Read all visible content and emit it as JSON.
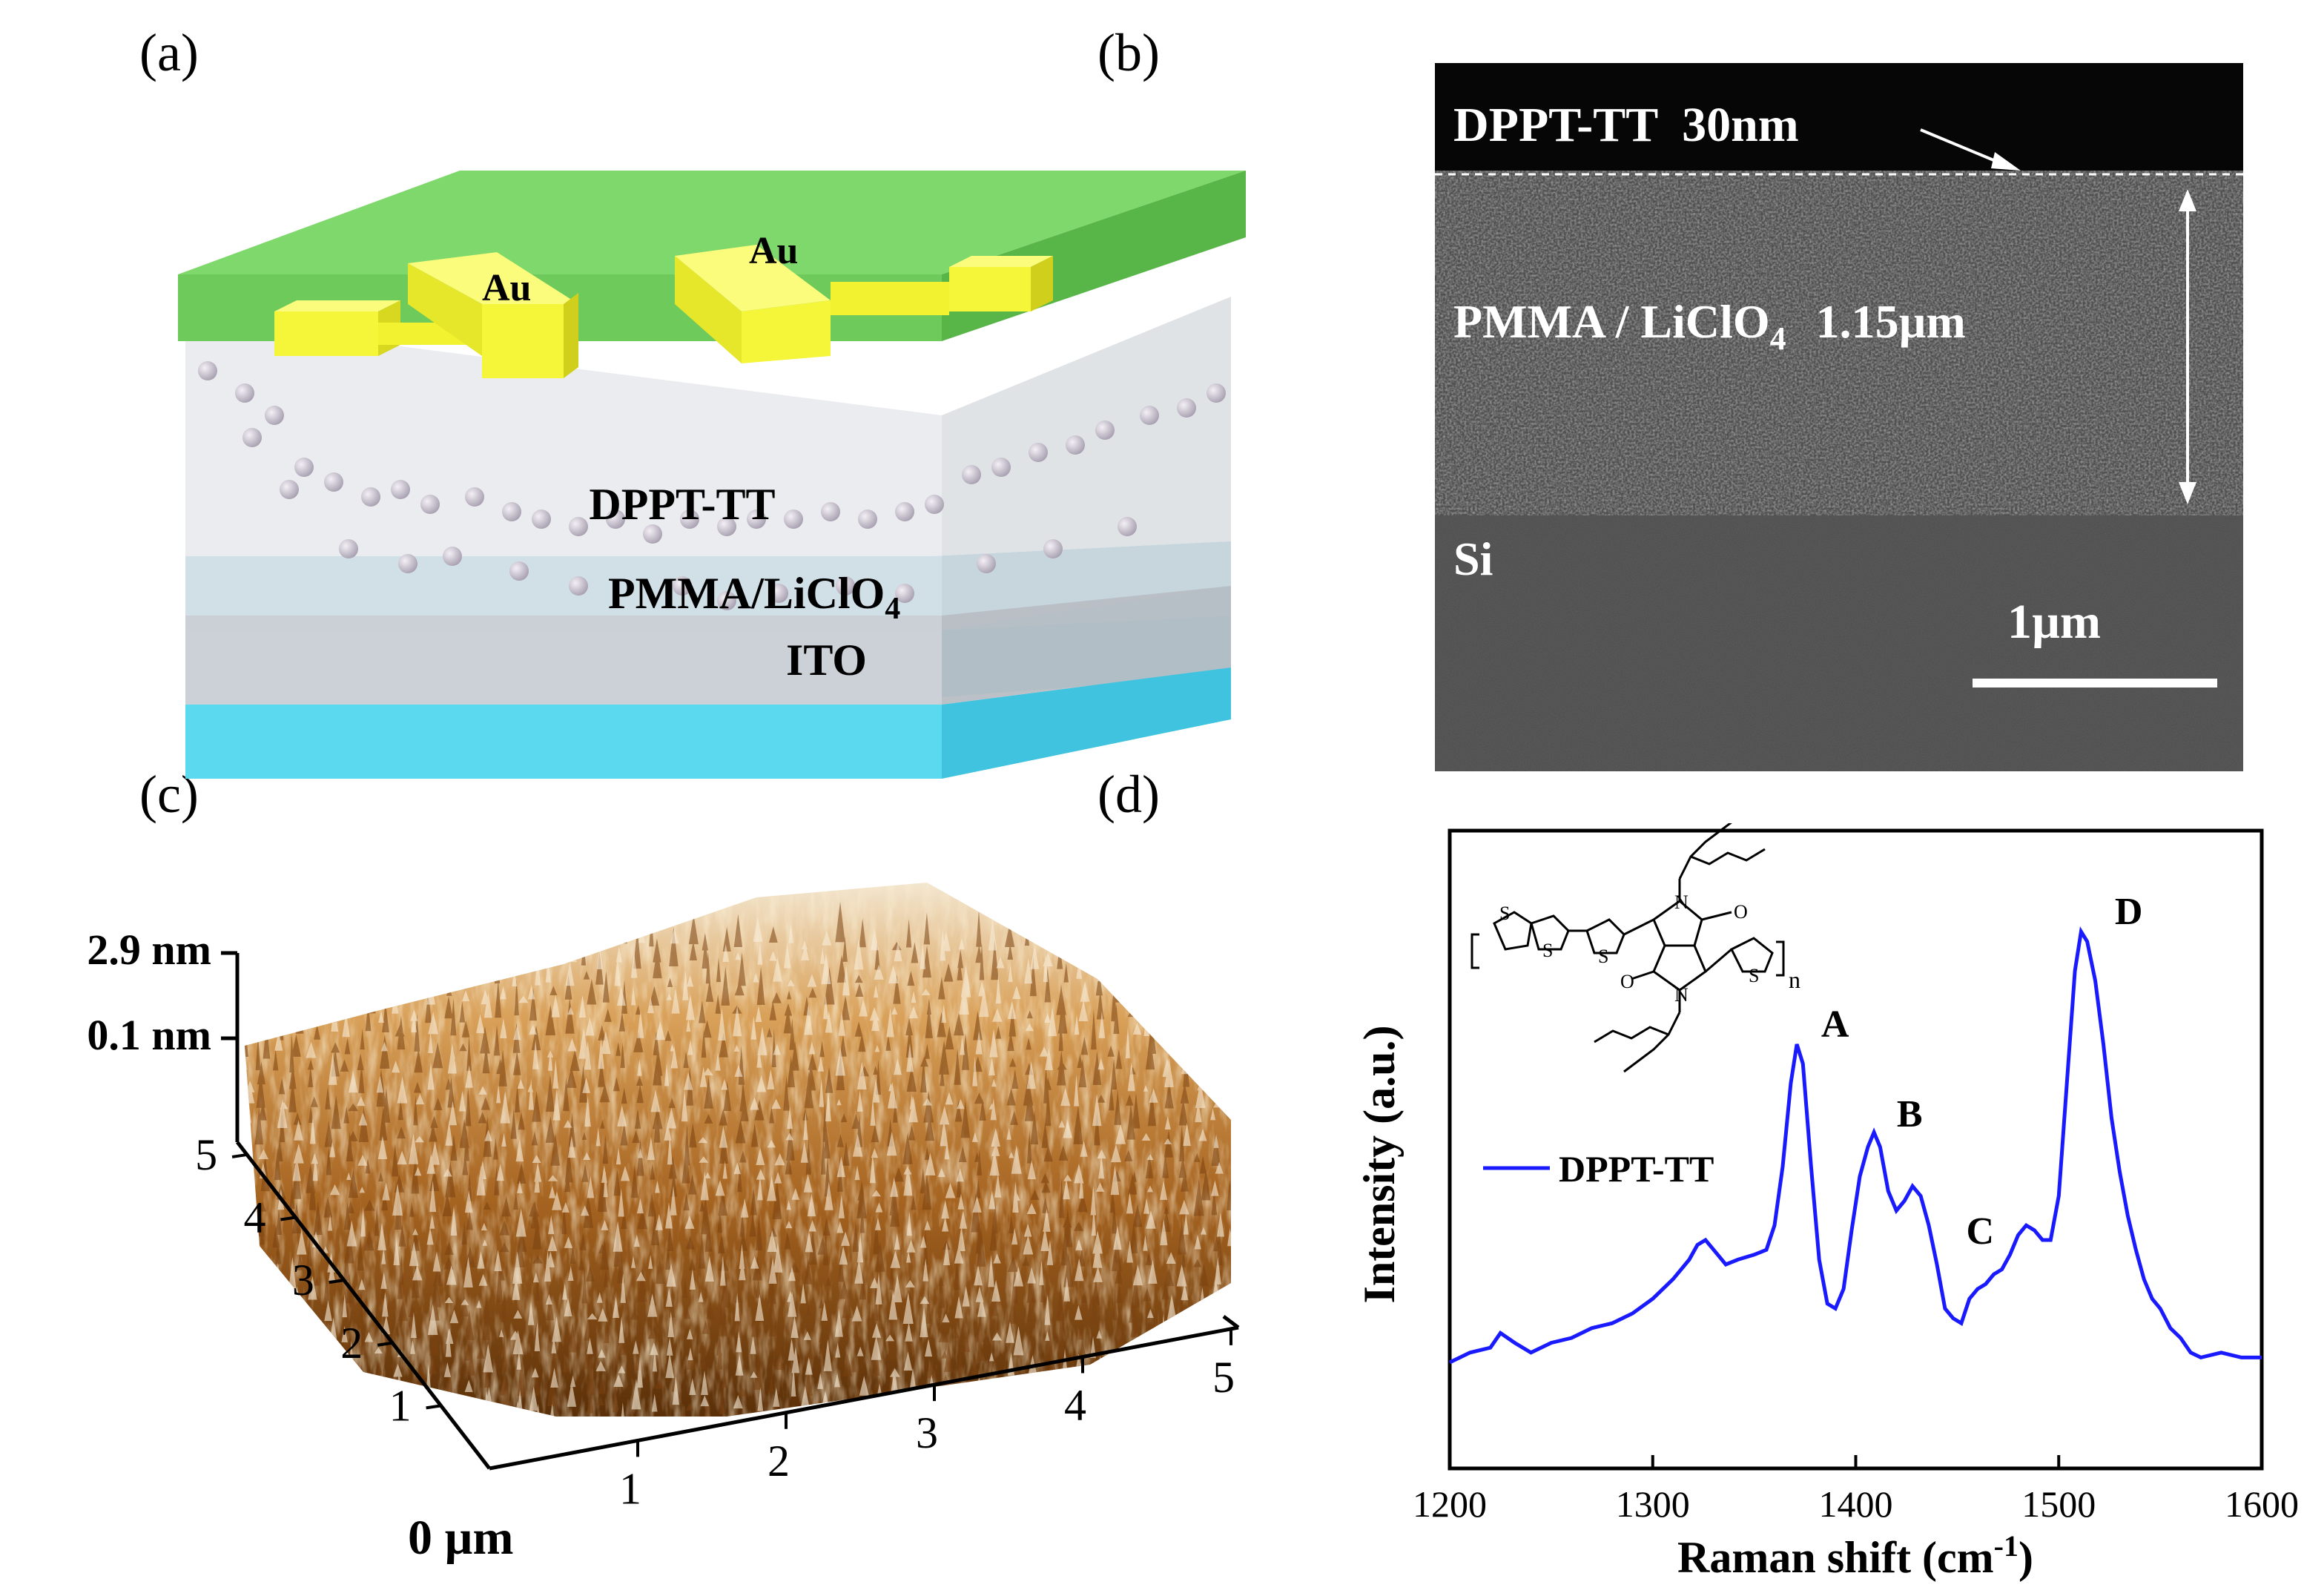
{
  "panels": {
    "a": {
      "label": "(a)",
      "electrode_left": "Au",
      "electrode_right": "Au",
      "layer_top": "DPPT-TT",
      "layer_mid": "PMMA/LiClO",
      "layer_mid_sub": "4",
      "layer_bottom": "ITO"
    },
    "b": {
      "label": "(b)",
      "top_label": "DPPT-TT  30nm",
      "mid_label": "PMMA / LiClO",
      "mid_sub": "4",
      "mid_thickness": "1.15µm",
      "bottom_label": "Si",
      "scalebar": "1µm"
    },
    "c": {
      "label": "(c)",
      "z_max": "2.9 nm",
      "z_min": "0.1 nm",
      "y_ticks": [
        "1",
        "2",
        "3",
        "4",
        "5"
      ],
      "x_ticks": [
        "1",
        "2",
        "3",
        "4",
        "5"
      ],
      "origin_label": "0 µm"
    },
    "d": {
      "label": "(d)",
      "structure_subscript": "n"
    }
  },
  "colors": {
    "green": "#6cc85c",
    "gold": "#f2f030",
    "ito": "#5fdcf0",
    "spectrum": "#1a1aff"
  },
  "chart_data": {
    "type": "line",
    "title": "",
    "xlabel": "Raman shift (cm",
    "xlabel_sup": "-1",
    "xlabel_end": ")",
    "ylabel": "Intensity (a.u.)",
    "xlim": [
      1200,
      1600
    ],
    "ylim": [
      0,
      1
    ],
    "xticks": [
      "1200",
      "1300",
      "1400",
      "1500",
      "1600"
    ],
    "legend": "DPPT-TT",
    "series": [
      {
        "name": "DPPT-TT",
        "x": [
          1200,
          1210,
          1220,
          1225,
          1232,
          1240,
          1250,
          1260,
          1270,
          1280,
          1290,
          1300,
          1310,
          1318,
          1322,
          1326,
          1330,
          1336,
          1342,
          1350,
          1356,
          1360,
          1364,
          1368,
          1371,
          1374,
          1378,
          1382,
          1386,
          1390,
          1394,
          1398,
          1402,
          1406,
          1409,
          1412,
          1416,
          1420,
          1424,
          1428,
          1432,
          1436,
          1440,
          1444,
          1448,
          1452,
          1456,
          1460,
          1464,
          1468,
          1472,
          1476,
          1480,
          1484,
          1488,
          1492,
          1496,
          1500,
          1504,
          1508,
          1511,
          1514,
          1518,
          1522,
          1526,
          1530,
          1534,
          1538,
          1542,
          1546,
          1550,
          1555,
          1560,
          1565,
          1570,
          1580,
          1590,
          1600
        ],
        "y": [
          0.05,
          0.07,
          0.08,
          0.11,
          0.09,
          0.07,
          0.09,
          0.1,
          0.12,
          0.13,
          0.15,
          0.18,
          0.22,
          0.26,
          0.29,
          0.3,
          0.28,
          0.25,
          0.26,
          0.27,
          0.28,
          0.33,
          0.45,
          0.62,
          0.7,
          0.66,
          0.45,
          0.26,
          0.17,
          0.16,
          0.2,
          0.32,
          0.43,
          0.49,
          0.52,
          0.49,
          0.4,
          0.36,
          0.38,
          0.41,
          0.39,
          0.33,
          0.25,
          0.16,
          0.14,
          0.13,
          0.18,
          0.2,
          0.21,
          0.23,
          0.24,
          0.27,
          0.31,
          0.33,
          0.32,
          0.3,
          0.3,
          0.39,
          0.62,
          0.85,
          0.93,
          0.91,
          0.83,
          0.7,
          0.55,
          0.44,
          0.35,
          0.28,
          0.22,
          0.18,
          0.16,
          0.12,
          0.1,
          0.07,
          0.06,
          0.07,
          0.06,
          0.06
        ]
      }
    ],
    "peaks": [
      {
        "label": "A",
        "x": 1372,
        "y": 0.7
      },
      {
        "label": "B",
        "x": 1410,
        "y": 0.52
      },
      {
        "label": "C",
        "x": 1438,
        "y": 0.33
      },
      {
        "label": "D",
        "x": 1513,
        "y": 0.93
      }
    ]
  }
}
